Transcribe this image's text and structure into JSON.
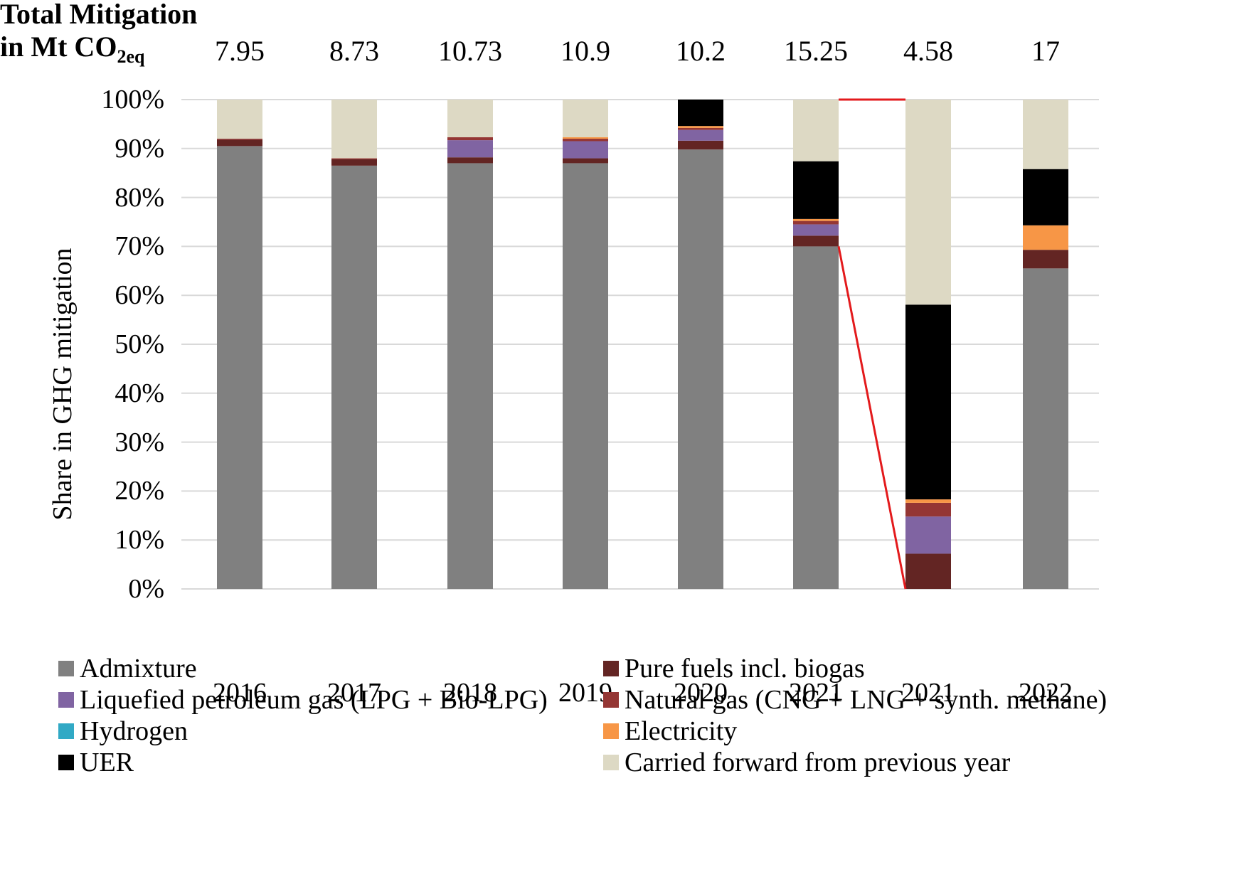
{
  "header": {
    "title_line1": "Total Mitigation",
    "title_line2_prefix": "in Mt CO",
    "title_line2_sub": "2eq"
  },
  "chart_data": {
    "type": "bar",
    "stacked": true,
    "title": "",
    "xlabel": "",
    "ylabel": "Share in GHG mitigation",
    "ylim": [
      0,
      100
    ],
    "ytick_labels": [
      "0%",
      "10%",
      "20%",
      "30%",
      "40%",
      "50%",
      "60%",
      "70%",
      "80%",
      "90%",
      "100%"
    ],
    "categories": [
      "2016",
      "2017",
      "2018",
      "2019",
      "2020",
      "2021",
      "2021",
      "2022"
    ],
    "totals_mt_co2eq": [
      "7.95",
      "8.73",
      "10.73",
      "10.9",
      "10.2",
      "15.25",
      "4.58",
      "17"
    ],
    "series": [
      {
        "name": "Admixture",
        "color": "#808080",
        "values": [
          90.5,
          86.5,
          87.0,
          87.0,
          89.8,
          70.0,
          0,
          65.5
        ]
      },
      {
        "name": "Pure fuels incl. biogas",
        "color": "#632523",
        "values": [
          1.3,
          1.3,
          1.2,
          1.0,
          1.8,
          2.2,
          7.2,
          3.8
        ]
      },
      {
        "name": "Liquefied petroleum gas (LPG + Bio-LPG)",
        "color": "#8064A2",
        "values": [
          0,
          0,
          3.5,
          3.5,
          2.2,
          2.3,
          7.6,
          0
        ]
      },
      {
        "name": "Natural gas (CNG + LNG + synth. methane)",
        "color": "#943634",
        "values": [
          0.2,
          0.2,
          0.6,
          0.5,
          0.4,
          0.7,
          2.8,
          0
        ]
      },
      {
        "name": "Hydrogen",
        "color": "#31A9C5",
        "values": [
          0,
          0,
          0,
          0,
          0,
          0,
          0,
          0
        ]
      },
      {
        "name": "Electricity",
        "color": "#F79646",
        "values": [
          0,
          0,
          0,
          0.3,
          0.4,
          0.4,
          0.7,
          5.0
        ]
      },
      {
        "name": "UER",
        "color": "#000000",
        "values": [
          0,
          0,
          0,
          0,
          5.4,
          11.8,
          39.8,
          11.5
        ]
      },
      {
        "name": "Carried forward from previous year",
        "color": "#DDD9C4",
        "values": [
          8.0,
          12.0,
          7.7,
          7.7,
          0,
          12.6,
          41.9,
          14.2
        ]
      }
    ],
    "legend_position": "bottom",
    "connector_color": "#E31A1C"
  }
}
